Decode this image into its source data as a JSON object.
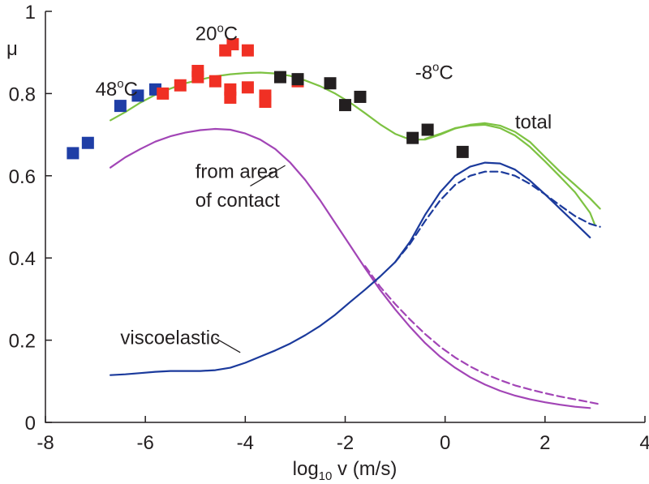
{
  "chart_data": {
    "type": "line",
    "xlabel": "log10 v (m/s)",
    "ylabel": "μ",
    "xlim": [
      -8,
      4
    ],
    "ylim": [
      0,
      1
    ],
    "xticks": [
      -8,
      -6,
      -4,
      -2,
      0,
      2,
      4
    ],
    "yticks": [
      0,
      0.2,
      0.4,
      0.6,
      0.8,
      1
    ],
    "grid": false,
    "colors": {
      "total": "#7dc242",
      "area": "#a245b6",
      "viscoelastic": "#1b3a9c",
      "marker_48C": "#1f3ea6",
      "marker_20C": "#f03024",
      "marker_m8C": "#231f20"
    },
    "annotations": [
      {
        "text": "20°C",
        "main": "20",
        "sup": "o",
        "tail": "C",
        "x": -5.0,
        "y": 0.93
      },
      {
        "text": "48°C",
        "main": "48",
        "sup": "o",
        "tail": "C",
        "x": -7.0,
        "y": 0.795
      },
      {
        "text": "-8°C",
        "main": "-8",
        "sup": "o",
        "tail": "C",
        "x": -0.6,
        "y": 0.835
      },
      {
        "text": "total",
        "main": "total",
        "x": 1.4,
        "y": 0.715
      },
      {
        "text": "from area",
        "main": "from area",
        "x": -5.0,
        "y": 0.595
      },
      {
        "text": "of contact",
        "main": "of contact",
        "x": -5.0,
        "y": 0.525
      },
      {
        "text": "viscoelastic",
        "main": "viscoelastic",
        "x": -6.5,
        "y": 0.19
      }
    ],
    "leaders": [
      {
        "x1": -3.2,
        "y1": 0.625,
        "x2": -3.9,
        "y2": 0.575
      },
      {
        "x1": -4.6,
        "y1": 0.205,
        "x2": -4.1,
        "y2": 0.17
      }
    ],
    "series": [
      {
        "name": "total",
        "color": "#7dc242",
        "dashed": false,
        "x": [
          -6.7,
          -6.4,
          -6.1,
          -5.8,
          -5.5,
          -5.2,
          -4.9,
          -4.6,
          -4.3,
          -4.0,
          -3.7,
          -3.4,
          -3.1,
          -2.8,
          -2.5,
          -2.2,
          -1.9,
          -1.6,
          -1.3,
          -1.0,
          -0.7,
          -0.4,
          -0.1,
          0.2,
          0.5,
          0.8,
          1.1,
          1.4,
          1.7,
          2.0,
          2.3,
          2.6,
          2.9,
          3.1
        ],
        "y": [
          0.735,
          0.755,
          0.778,
          0.797,
          0.812,
          0.825,
          0.834,
          0.842,
          0.847,
          0.85,
          0.851,
          0.849,
          0.843,
          0.832,
          0.818,
          0.8,
          0.778,
          0.752,
          0.725,
          0.702,
          0.688,
          0.688,
          0.7,
          0.715,
          0.724,
          0.728,
          0.722,
          0.707,
          0.682,
          0.646,
          0.61,
          0.578,
          0.545,
          0.52
        ]
      },
      {
        "name": "total",
        "color": "#7dc242",
        "dashed": false,
        "x": [
          -0.4,
          -0.1,
          0.2,
          0.5,
          0.8,
          1.1,
          1.4,
          1.7,
          2.0,
          2.3,
          2.6,
          2.9,
          3.0
        ],
        "y": [
          0.69,
          0.702,
          0.716,
          0.722,
          0.724,
          0.716,
          0.698,
          0.67,
          0.635,
          0.598,
          0.56,
          0.51,
          0.48
        ]
      },
      {
        "name": "from area of contact",
        "color": "#a245b6",
        "dashed": false,
        "x": [
          -6.7,
          -6.4,
          -6.1,
          -5.8,
          -5.5,
          -5.2,
          -4.9,
          -4.6,
          -4.3,
          -4.0,
          -3.7,
          -3.4,
          -3.1,
          -2.8,
          -2.5,
          -2.2,
          -1.9,
          -1.6,
          -1.3,
          -1.0,
          -0.7,
          -0.4,
          -0.1,
          0.2,
          0.5,
          0.8,
          1.1,
          1.4,
          1.7,
          2.0,
          2.3,
          2.6,
          2.9
        ],
        "y": [
          0.62,
          0.645,
          0.665,
          0.683,
          0.696,
          0.705,
          0.711,
          0.714,
          0.712,
          0.703,
          0.688,
          0.665,
          0.632,
          0.59,
          0.54,
          0.485,
          0.43,
          0.375,
          0.322,
          0.275,
          0.232,
          0.193,
          0.16,
          0.133,
          0.11,
          0.092,
          0.077,
          0.065,
          0.056,
          0.049,
          0.043,
          0.038,
          0.035
        ]
      },
      {
        "name": "from area of contact",
        "color": "#a245b6",
        "dashed": true,
        "x": [
          -1.6,
          -1.3,
          -1.0,
          -0.7,
          -0.4,
          -0.1,
          0.2,
          0.5,
          0.8,
          1.1,
          1.4,
          1.7,
          2.0,
          2.3,
          2.6,
          2.9,
          3.1
        ],
        "y": [
          0.38,
          0.33,
          0.288,
          0.25,
          0.215,
          0.184,
          0.158,
          0.136,
          0.118,
          0.103,
          0.09,
          0.08,
          0.071,
          0.063,
          0.056,
          0.049,
          0.044
        ]
      },
      {
        "name": "viscoelastic",
        "color": "#1b3a9c",
        "dashed": false,
        "x": [
          -6.7,
          -6.4,
          -6.1,
          -5.8,
          -5.5,
          -5.2,
          -4.9,
          -4.6,
          -4.3,
          -4.0,
          -3.7,
          -3.4,
          -3.1,
          -2.8,
          -2.5,
          -2.2,
          -1.9,
          -1.6,
          -1.3,
          -1.0,
          -0.7,
          -0.4,
          -0.1,
          0.2,
          0.5,
          0.8,
          1.1,
          1.4,
          1.7,
          2.0,
          2.3,
          2.6,
          2.9
        ],
        "y": [
          0.115,
          0.117,
          0.12,
          0.123,
          0.125,
          0.125,
          0.125,
          0.127,
          0.133,
          0.145,
          0.16,
          0.175,
          0.192,
          0.212,
          0.235,
          0.262,
          0.293,
          0.323,
          0.355,
          0.39,
          0.44,
          0.505,
          0.56,
          0.6,
          0.622,
          0.632,
          0.63,
          0.615,
          0.588,
          0.555,
          0.52,
          0.485,
          0.45
        ]
      },
      {
        "name": "viscoelastic",
        "color": "#1b3a9c",
        "dashed": true,
        "x": [
          -1.0,
          -0.7,
          -0.4,
          -0.1,
          0.2,
          0.5,
          0.8,
          1.1,
          1.4,
          1.7,
          2.0,
          2.3,
          2.6,
          2.9,
          3.1
        ],
        "y": [
          0.39,
          0.435,
          0.49,
          0.54,
          0.578,
          0.6,
          0.61,
          0.61,
          0.6,
          0.58,
          0.555,
          0.528,
          0.502,
          0.483,
          0.476
        ]
      }
    ],
    "markers": [
      {
        "temp": "48°C",
        "color": "#1f3ea6",
        "x": -7.45,
        "y": 0.655
      },
      {
        "temp": "48°C",
        "color": "#1f3ea6",
        "x": -7.15,
        "y": 0.68
      },
      {
        "temp": "48°C",
        "color": "#1f3ea6",
        "x": -6.5,
        "y": 0.77
      },
      {
        "temp": "48°C",
        "color": "#1f3ea6",
        "x": -6.15,
        "y": 0.795
      },
      {
        "temp": "48°C",
        "color": "#1f3ea6",
        "x": -5.8,
        "y": 0.81
      },
      {
        "temp": "20°C",
        "color": "#f03024",
        "x": -5.65,
        "y": 0.8
      },
      {
        "temp": "20°C",
        "color": "#f03024",
        "x": -5.3,
        "y": 0.82
      },
      {
        "temp": "20°C",
        "color": "#f03024",
        "x": -4.95,
        "y": 0.84
      },
      {
        "temp": "20°C",
        "color": "#f03024",
        "x": -4.95,
        "y": 0.855
      },
      {
        "temp": "20°C",
        "color": "#f03024",
        "x": -4.6,
        "y": 0.83
      },
      {
        "temp": "20°C",
        "color": "#f03024",
        "x": -4.3,
        "y": 0.79
      },
      {
        "temp": "20°C",
        "color": "#f03024",
        "x": -4.3,
        "y": 0.81
      },
      {
        "temp": "20°C",
        "color": "#f03024",
        "x": -4.4,
        "y": 0.905
      },
      {
        "temp": "20°C",
        "color": "#f03024",
        "x": -4.25,
        "y": 0.92
      },
      {
        "temp": "20°C",
        "color": "#f03024",
        "x": -3.95,
        "y": 0.905
      },
      {
        "temp": "20°C",
        "color": "#f03024",
        "x": -3.95,
        "y": 0.815
      },
      {
        "temp": "20°C",
        "color": "#f03024",
        "x": -3.6,
        "y": 0.78
      },
      {
        "temp": "20°C",
        "color": "#f03024",
        "x": -3.6,
        "y": 0.795
      },
      {
        "temp": "20°C",
        "color": "#f03024",
        "x": -2.95,
        "y": 0.83
      },
      {
        "temp": "-8°C",
        "color": "#231f20",
        "x": -3.3,
        "y": 0.84
      },
      {
        "temp": "-8°C",
        "color": "#231f20",
        "x": -2.95,
        "y": 0.835
      },
      {
        "temp": "-8°C",
        "color": "#231f20",
        "x": -2.3,
        "y": 0.825
      },
      {
        "temp": "-8°C",
        "color": "#231f20",
        "x": -1.7,
        "y": 0.792
      },
      {
        "temp": "-8°C",
        "color": "#231f20",
        "x": -2.0,
        "y": 0.772
      },
      {
        "temp": "-8°C",
        "color": "#231f20",
        "x": -0.65,
        "y": 0.692
      },
      {
        "temp": "-8°C",
        "color": "#231f20",
        "x": -0.35,
        "y": 0.712
      },
      {
        "temp": "-8°C",
        "color": "#231f20",
        "x": 0.35,
        "y": 0.658
      }
    ]
  }
}
